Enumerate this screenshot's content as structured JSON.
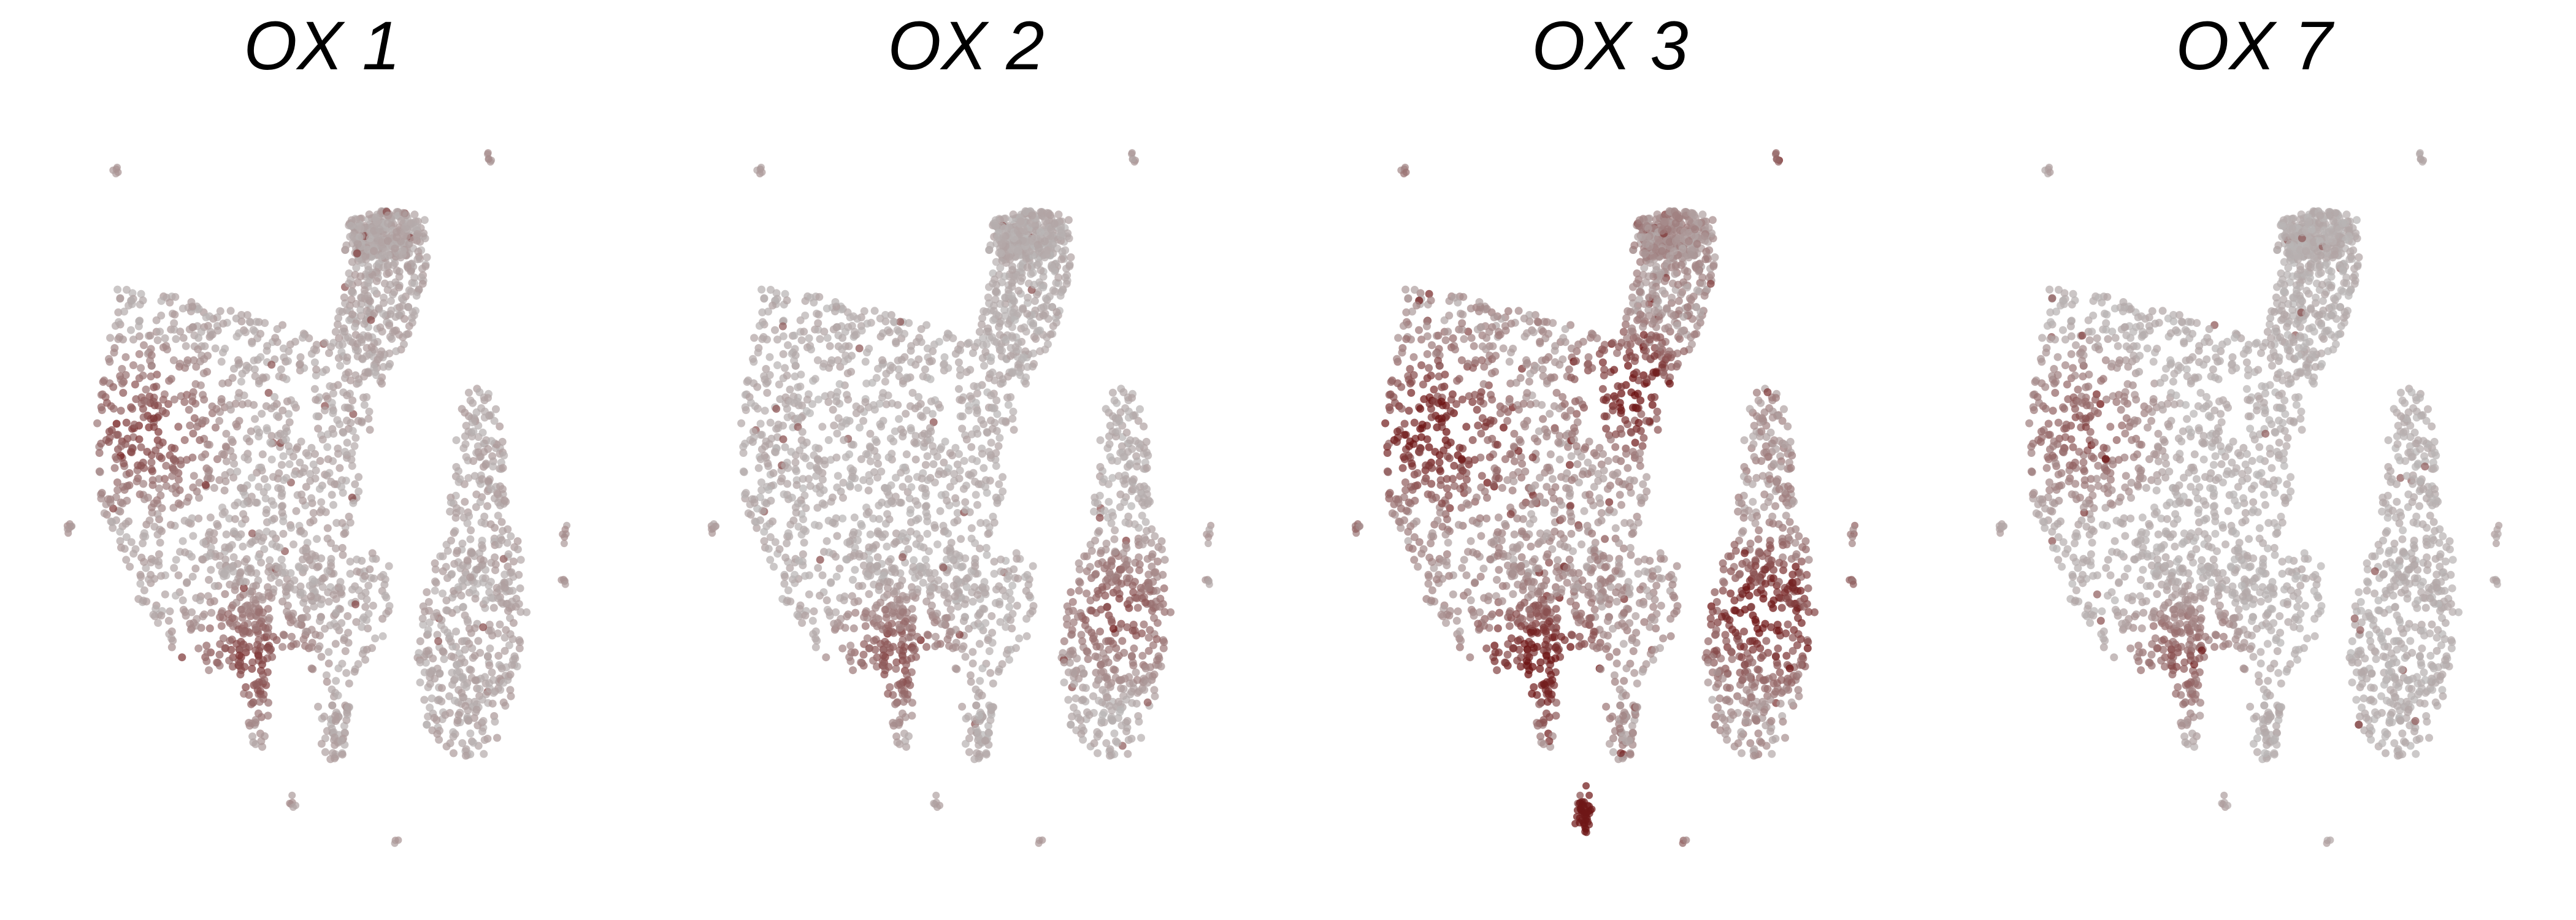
{
  "chart_data": {
    "type": "scatter",
    "description_of_encoding": "",
    "colors": {
      "low": "#bdbdbd",
      "high": "#6b0f0f"
    },
    "grid": false,
    "axes_visible": false,
    "legend": "none",
    "panels": [
      {
        "title": "OX 1",
        "intensity": 0.45,
        "hotspots": [
          "lower-left-stalk",
          "left-cluster"
        ]
      },
      {
        "title": "OX 2",
        "intensity": 0.35,
        "hotspots": [
          "lower-left-stalk",
          "right-cluster"
        ]
      },
      {
        "title": "OX 3",
        "intensity": 0.85,
        "hotspots": [
          "lower-left-stalk",
          "left-cluster",
          "upper-middle",
          "bottom-blob",
          "right-cluster"
        ]
      },
      {
        "title": "OX 7",
        "intensity": 0.3,
        "hotspots": [
          "left-cluster",
          "lower-left-stalk"
        ]
      }
    ]
  }
}
